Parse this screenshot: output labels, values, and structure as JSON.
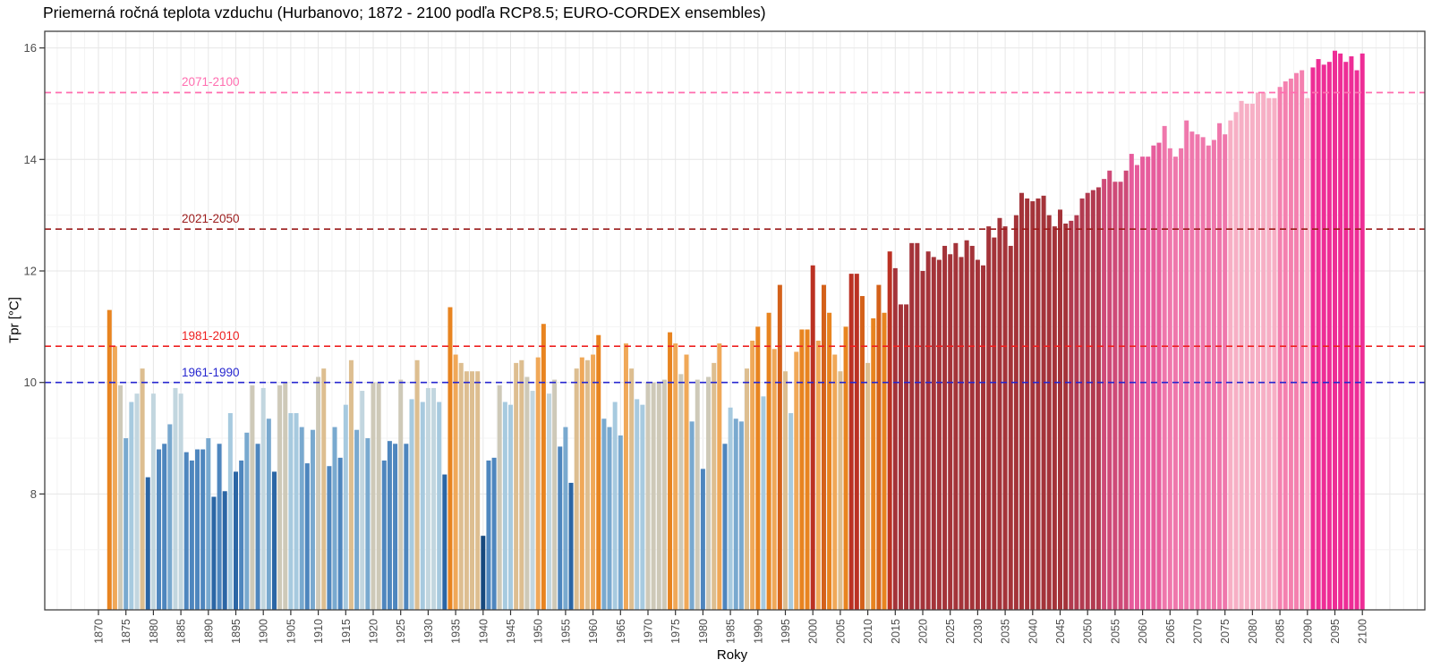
{
  "title": "Priemerná ročná teplota vzduchu (Hurbanovo; 1872 - 2100 podľa RCP8.5; EURO-CORDEX ensembles)",
  "axes": {
    "x_label": "Roky",
    "y_label": "Tpr [°C]",
    "y_ticks": [
      8,
      10,
      12,
      14,
      16
    ],
    "x_ticks_start": 1870,
    "x_ticks_end": 2100,
    "x_ticks_step": 5
  },
  "reference_lines": [
    {
      "label": "2071-2100",
      "value": 15.2,
      "color": "#FF6EB0"
    },
    {
      "label": "2021-2050",
      "value": 12.75,
      "color": "#9B1B1B"
    },
    {
      "label": "1981-2010",
      "value": 10.65,
      "color": "#EE2020"
    },
    {
      "label": "1961-1990",
      "value": 10.0,
      "color": "#2626CF"
    }
  ],
  "chart_data": {
    "type": "bar",
    "title": "Priemerná ročná teplota vzduchu (Hurbanovo; 1872 - 2100 podľa RCP8.5; EURO-CORDEX ensembles)",
    "xlabel": "Roky",
    "ylabel": "Tpr [°C]",
    "x_start_year": 1872,
    "x_end_year": 2100,
    "ylim_visible": [
      5.9,
      16.3
    ],
    "grid": "on",
    "legend": "none",
    "values": [
      11.3,
      10.65,
      9.95,
      9.0,
      9.65,
      9.8,
      10.25,
      8.3,
      9.8,
      8.8,
      8.9,
      9.25,
      9.9,
      9.8,
      8.75,
      8.6,
      8.8,
      8.8,
      9.0,
      7.95,
      8.9,
      8.05,
      9.45,
      8.4,
      8.6,
      9.1,
      9.95,
      8.9,
      9.9,
      9.35,
      8.4,
      9.95,
      10.0,
      9.45,
      9.45,
      9.2,
      8.55,
      9.15,
      10.1,
      10.25,
      8.5,
      9.2,
      8.65,
      9.6,
      10.4,
      9.15,
      9.85,
      9.0,
      10.0,
      10.0,
      8.6,
      8.95,
      8.9,
      10.05,
      8.9,
      9.7,
      10.4,
      9.65,
      9.9,
      9.9,
      9.65,
      8.35,
      11.35,
      10.5,
      10.35,
      10.2,
      10.2,
      10.2,
      7.25,
      8.6,
      8.65,
      9.95,
      9.65,
      9.6,
      10.35,
      10.4,
      10.1,
      9.85,
      10.45,
      11.05,
      9.8,
      10.05,
      8.85,
      9.2,
      8.2,
      10.25,
      10.45,
      10.4,
      10.5,
      10.85,
      9.35,
      9.2,
      9.65,
      9.05,
      10.7,
      10.25,
      9.7,
      9.6,
      10.0,
      10.0,
      10.0,
      10.05,
      10.9,
      10.7,
      10.15,
      10.5,
      9.3,
      10.05,
      8.45,
      10.1,
      10.35,
      10.7,
      8.9,
      9.55,
      9.35,
      9.3,
      10.25,
      10.75,
      11.0,
      9.75,
      11.25,
      10.6,
      11.75,
      10.2,
      9.45,
      10.55,
      10.95,
      10.95,
      12.1,
      10.75,
      11.75,
      11.25,
      10.5,
      10.2,
      11.0,
      11.95,
      11.95,
      11.55,
      10.35,
      11.15,
      11.75,
      11.25,
      12.35,
      12.05,
      11.4,
      11.4,
      12.5,
      12.5,
      12.0,
      12.35,
      12.25,
      12.2,
      12.45,
      12.3,
      12.5,
      12.25,
      12.55,
      12.45,
      12.2,
      12.1,
      12.8,
      12.6,
      12.95,
      12.8,
      12.45,
      13.0,
      13.4,
      13.3,
      13.25,
      13.3,
      13.35,
      13.0,
      12.8,
      13.1,
      12.85,
      12.9,
      13.0,
      13.3,
      13.4,
      13.45,
      13.5,
      13.65,
      13.8,
      13.6,
      13.6,
      13.8,
      14.1,
      13.9,
      14.05,
      14.05,
      14.25,
      14.3,
      14.6,
      14.2,
      14.05,
      14.2,
      14.7,
      14.5,
      14.45,
      14.4,
      14.25,
      14.35,
      14.65,
      14.45,
      14.7,
      14.85,
      15.05,
      15.0,
      15.0,
      15.2,
      15.2,
      15.1,
      15.1,
      15.3,
      15.4,
      15.45,
      15.55,
      15.6,
      15.1,
      15.65,
      15.8,
      15.7,
      15.75,
      15.95,
      15.9,
      15.75,
      15.85,
      15.6,
      15.9
    ],
    "projection_start_year": 2015,
    "observed_color_bands_by_value": [
      {
        "max": 7.8,
        "color": "#17497E"
      },
      {
        "max": 8.45,
        "color": "#2B66A5"
      },
      {
        "max": 8.97,
        "color": "#4E86BE"
      },
      {
        "max": 9.42,
        "color": "#79A9CF"
      },
      {
        "max": 9.78,
        "color": "#A7CADF"
      },
      {
        "max": 9.93,
        "color": "#C2D6DF"
      },
      {
        "max": 10.17,
        "color": "#CEC9B8"
      },
      {
        "max": 10.44,
        "color": "#DDBE90"
      },
      {
        "max": 10.8,
        "color": "#F0A858"
      },
      {
        "max": 11.5,
        "color": "#E88420"
      },
      {
        "max": 11.88,
        "color": "#D4611A"
      },
      {
        "max": 99,
        "color": "#BB3123"
      }
    ],
    "projection_color_bands_by_year": [
      {
        "until": 2046,
        "color": "#A43339"
      },
      {
        "until": 2052,
        "color": "#B23B50"
      },
      {
        "until": 2057,
        "color": "#CE4A78"
      },
      {
        "until": 2063,
        "color": "#E75C9C"
      },
      {
        "until": 2075,
        "color": "#EF77AC"
      },
      {
        "until": 2084,
        "color": "#F7AFC5"
      },
      {
        "until": 2089,
        "color": "#F480AF"
      },
      {
        "until": 2090,
        "color": "#F9B6CA"
      },
      {
        "until": 2100,
        "color": "#EE2D96"
      }
    ]
  }
}
